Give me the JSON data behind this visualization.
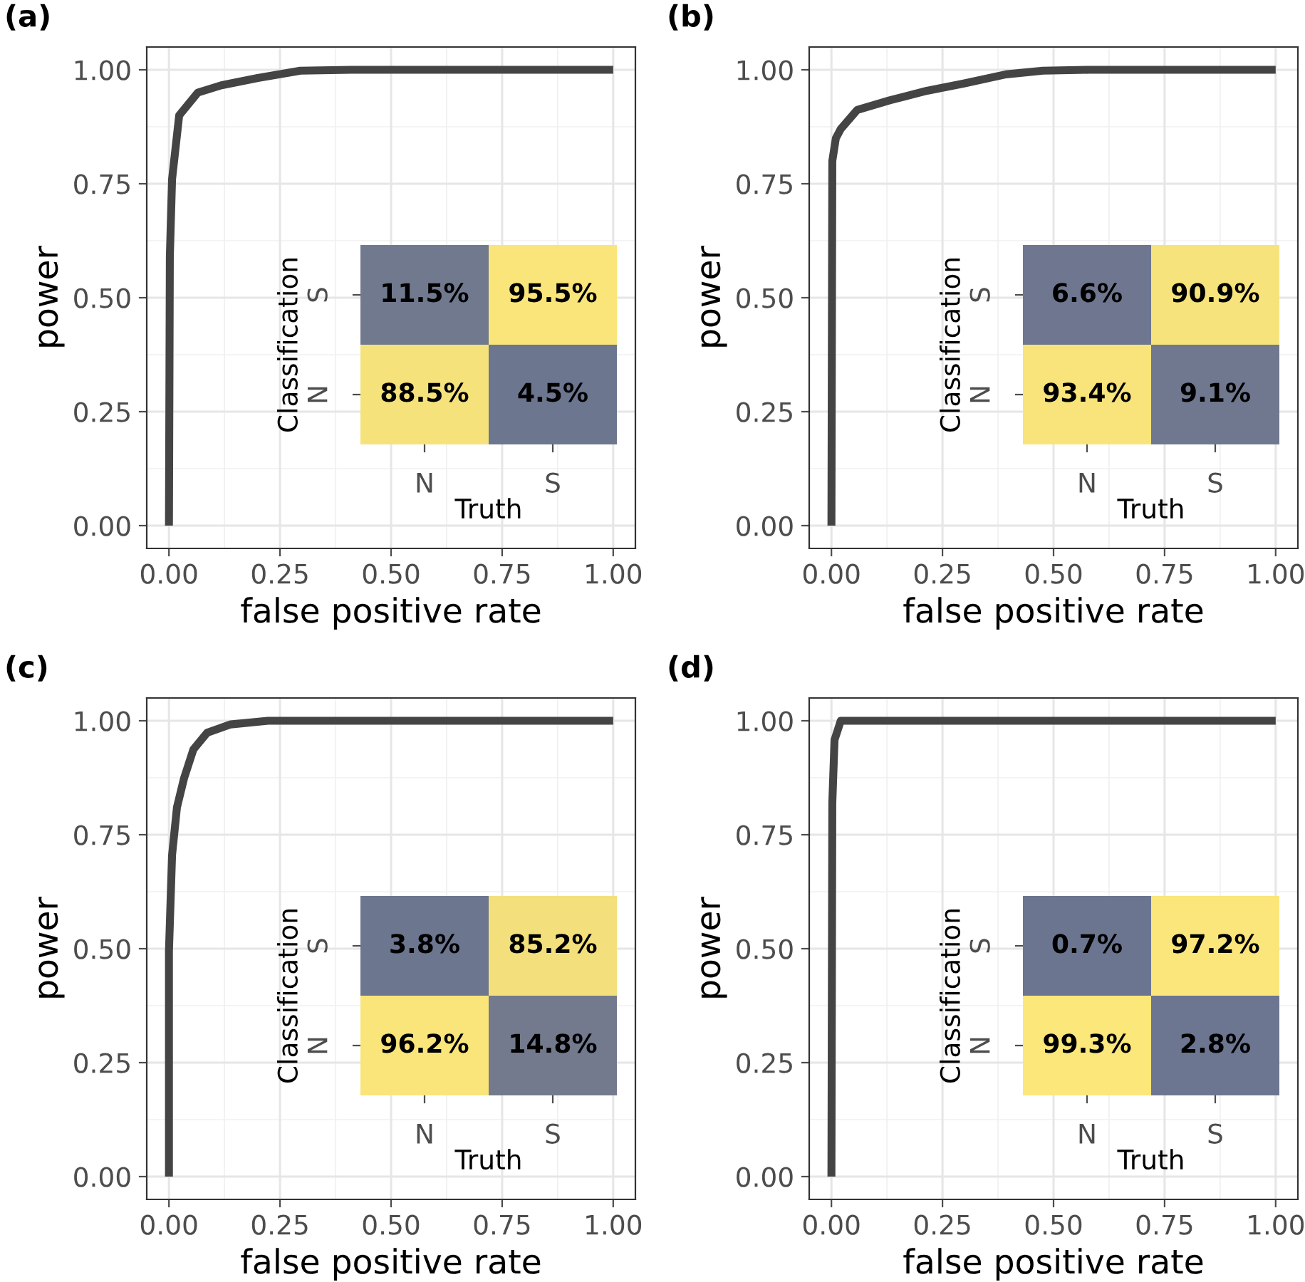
{
  "chart_data": [
    {
      "type": "line",
      "title": "(a)",
      "xlabel": "false positive rate",
      "ylabel": "power",
      "xlim": [
        -0.05,
        1.05
      ],
      "ylim": [
        -0.05,
        1.05
      ],
      "xticks": [
        {
          "value": 0,
          "label": "0.00"
        },
        {
          "value": 0.25,
          "label": "0.25"
        },
        {
          "value": 0.5,
          "label": "0.50"
        },
        {
          "value": 0.75,
          "label": "0.75"
        },
        {
          "value": 1,
          "label": "1.00"
        }
      ],
      "yticks": [
        {
          "value": 0,
          "label": "0.00"
        },
        {
          "value": 0.25,
          "label": "0.25"
        },
        {
          "value": 0.5,
          "label": "0.50"
        },
        {
          "value": 0.75,
          "label": "0.75"
        },
        {
          "value": 1,
          "label": "1.00"
        }
      ],
      "grid": true,
      "series": [
        {
          "color": "#444444",
          "x": [
            0,
            0.002,
            0.007,
            0.023,
            0.065,
            0.118,
            0.2,
            0.296,
            0.41,
            1
          ],
          "values": [
            0,
            0.59,
            0.76,
            0.9,
            0.95,
            0.966,
            0.982,
            0.998,
            1,
            1
          ]
        }
      ]
    },
    {
      "type": "heatmap",
      "xlabel": "Truth",
      "ylabel": "Classification",
      "categories": [
        "N",
        "S"
      ],
      "y_categories": [
        "S",
        "N"
      ],
      "cells": [
        [
          11.5,
          95.5
        ],
        [
          88.5,
          4.5
        ]
      ],
      "cell_labels": [
        [
          "11.5%",
          "95.5%"
        ],
        [
          "88.5%",
          "4.5%"
        ]
      ]
    },
    {
      "type": "line",
      "title": "(b)",
      "xlabel": "false positive rate",
      "ylabel": "power",
      "xlim": [
        -0.05,
        1.05
      ],
      "ylim": [
        -0.05,
        1.05
      ],
      "xticks": [
        {
          "value": 0,
          "label": "0.00"
        },
        {
          "value": 0.25,
          "label": "0.25"
        },
        {
          "value": 0.5,
          "label": "0.50"
        },
        {
          "value": 0.75,
          "label": "0.75"
        },
        {
          "value": 1,
          "label": "1.00"
        }
      ],
      "yticks": [
        {
          "value": 0,
          "label": "0.00"
        },
        {
          "value": 0.25,
          "label": "0.25"
        },
        {
          "value": 0.5,
          "label": "0.50"
        },
        {
          "value": 0.75,
          "label": "0.75"
        },
        {
          "value": 1,
          "label": "1.00"
        }
      ],
      "grid": true,
      "series": [
        {
          "color": "#444444",
          "x": [
            0,
            0.002,
            0.01,
            0.021,
            0.058,
            0.131,
            0.215,
            0.298,
            0.393,
            0.476,
            0.58,
            1
          ],
          "values": [
            0,
            0.8,
            0.85,
            0.87,
            0.912,
            0.933,
            0.954,
            0.97,
            0.99,
            0.998,
            1,
            1
          ]
        }
      ]
    },
    {
      "type": "heatmap",
      "xlabel": "Truth",
      "ylabel": "Classification",
      "categories": [
        "N",
        "S"
      ],
      "y_categories": [
        "S",
        "N"
      ],
      "cells": [
        [
          6.6,
          90.9
        ],
        [
          93.4,
          9.1
        ]
      ],
      "cell_labels": [
        [
          "6.6%",
          "90.9%"
        ],
        [
          "93.4%",
          "9.1%"
        ]
      ]
    },
    {
      "type": "line",
      "title": "(c)",
      "xlabel": "false positive rate",
      "ylabel": "power",
      "xlim": [
        -0.05,
        1.05
      ],
      "ylim": [
        -0.05,
        1.05
      ],
      "xticks": [
        {
          "value": 0,
          "label": "0.00"
        },
        {
          "value": 0.25,
          "label": "0.25"
        },
        {
          "value": 0.5,
          "label": "0.50"
        },
        {
          "value": 0.75,
          "label": "0.75"
        },
        {
          "value": 1,
          "label": "1.00"
        }
      ],
      "yticks": [
        {
          "value": 0,
          "label": "0.00"
        },
        {
          "value": 0.25,
          "label": "0.25"
        },
        {
          "value": 0.5,
          "label": "0.50"
        },
        {
          "value": 0.75,
          "label": "0.75"
        },
        {
          "value": 1,
          "label": "1.00"
        }
      ],
      "grid": true,
      "series": [
        {
          "color": "#444444",
          "x": [
            0,
            0,
            0.007,
            0.018,
            0.034,
            0.055,
            0.086,
            0.139,
            0.223,
            1
          ],
          "values": [
            0,
            0.495,
            0.705,
            0.81,
            0.874,
            0.937,
            0.974,
            0.992,
            1,
            1
          ]
        }
      ]
    },
    {
      "type": "heatmap",
      "xlabel": "Truth",
      "ylabel": "Classification",
      "categories": [
        "N",
        "S"
      ],
      "y_categories": [
        "S",
        "N"
      ],
      "cells": [
        [
          3.8,
          85.2
        ],
        [
          96.2,
          14.8
        ]
      ],
      "cell_labels": [
        [
          "3.8%",
          "85.2%"
        ],
        [
          "96.2%",
          "14.8%"
        ]
      ]
    },
    {
      "type": "line",
      "title": "(d)",
      "xlabel": "false positive rate",
      "ylabel": "power",
      "xlim": [
        -0.05,
        1.05
      ],
      "ylim": [
        -0.05,
        1.05
      ],
      "xticks": [
        {
          "value": 0,
          "label": "0.00"
        },
        {
          "value": 0.25,
          "label": "0.25"
        },
        {
          "value": 0.5,
          "label": "0.50"
        },
        {
          "value": 0.75,
          "label": "0.75"
        },
        {
          "value": 1,
          "label": "1.00"
        }
      ],
      "yticks": [
        {
          "value": 0,
          "label": "0.00"
        },
        {
          "value": 0.25,
          "label": "0.25"
        },
        {
          "value": 0.5,
          "label": "0.50"
        },
        {
          "value": 0.75,
          "label": "0.75"
        },
        {
          "value": 1,
          "label": "1.00"
        }
      ],
      "grid": true,
      "series": [
        {
          "color": "#444444",
          "x": [
            0,
            0.002,
            0.007,
            0.021,
            1
          ],
          "values": [
            0,
            0.82,
            0.958,
            1,
            1
          ]
        }
      ]
    },
    {
      "type": "heatmap",
      "xlabel": "Truth",
      "ylabel": "Classification",
      "categories": [
        "N",
        "S"
      ],
      "y_categories": [
        "S",
        "N"
      ],
      "cells": [
        [
          0.7,
          97.2
        ],
        [
          99.3,
          2.8
        ]
      ],
      "cell_labels": [
        [
          "0.7%",
          "97.2%"
        ],
        [
          "99.3%",
          "2.8%"
        ]
      ]
    }
  ]
}
